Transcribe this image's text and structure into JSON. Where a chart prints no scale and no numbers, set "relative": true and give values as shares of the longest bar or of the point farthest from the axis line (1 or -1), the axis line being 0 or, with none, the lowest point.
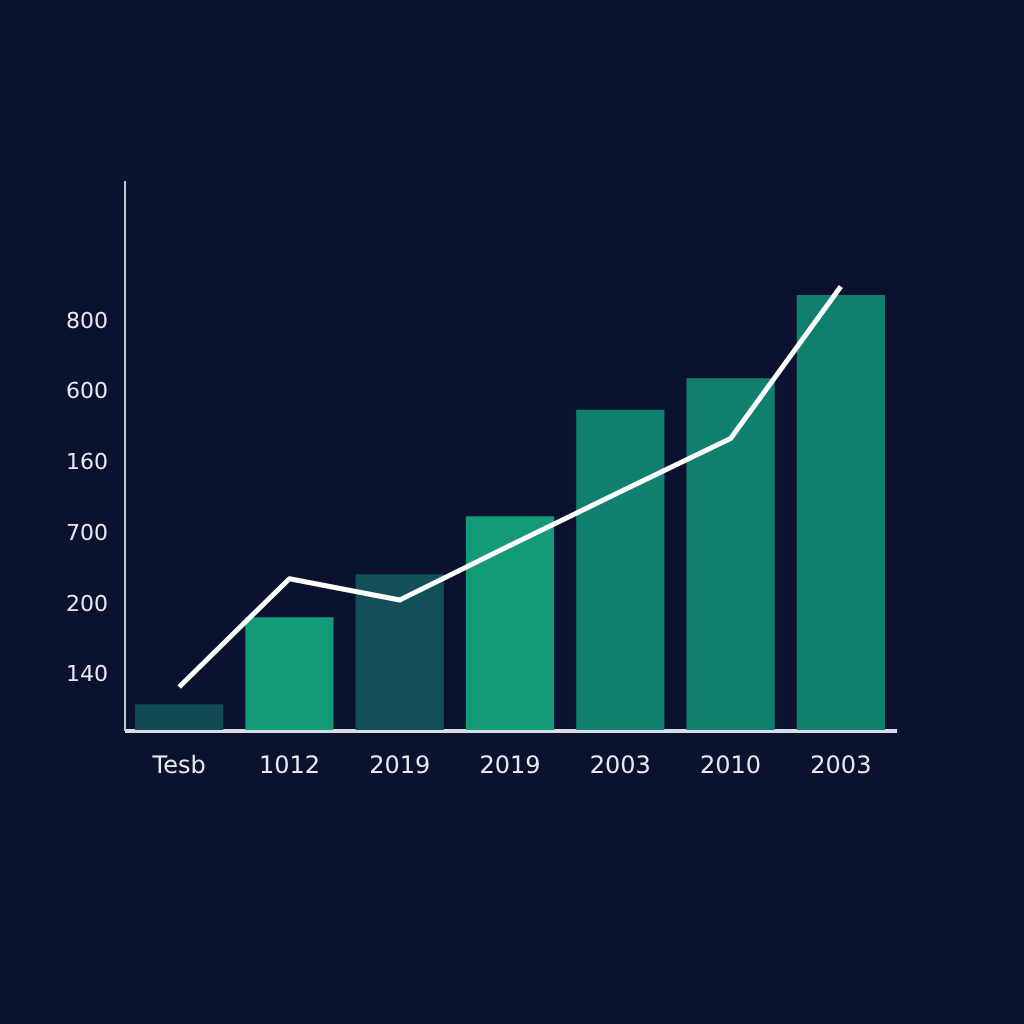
{
  "chart_data": {
    "type": "bar",
    "relative": true,
    "categories": [
      "Tesb",
      "1012",
      "2019",
      "2019",
      "2003",
      "2010",
      "2003"
    ],
    "series": [
      {
        "colors": [
          "#114a52",
          "#139a76",
          "#124f58",
          "#139a76",
          "#10806e",
          "#10806e",
          "#10806e"
        ],
        "values": [
          0.058,
          0.254,
          0.351,
          0.482,
          0.722,
          0.793,
          0.981
        ]
      },
      {
        "type": "line",
        "color": "#ffffff",
        "values": [
          0.097,
          0.341,
          0.293,
          0.416,
          0.537,
          0.657,
          1
        ]
      }
    ],
    "annotations": [
      "140",
      "200",
      "700",
      "160",
      "600",
      "800"
    ],
    "marker": "none",
    "line_style": "solid",
    "legend": false
  }
}
